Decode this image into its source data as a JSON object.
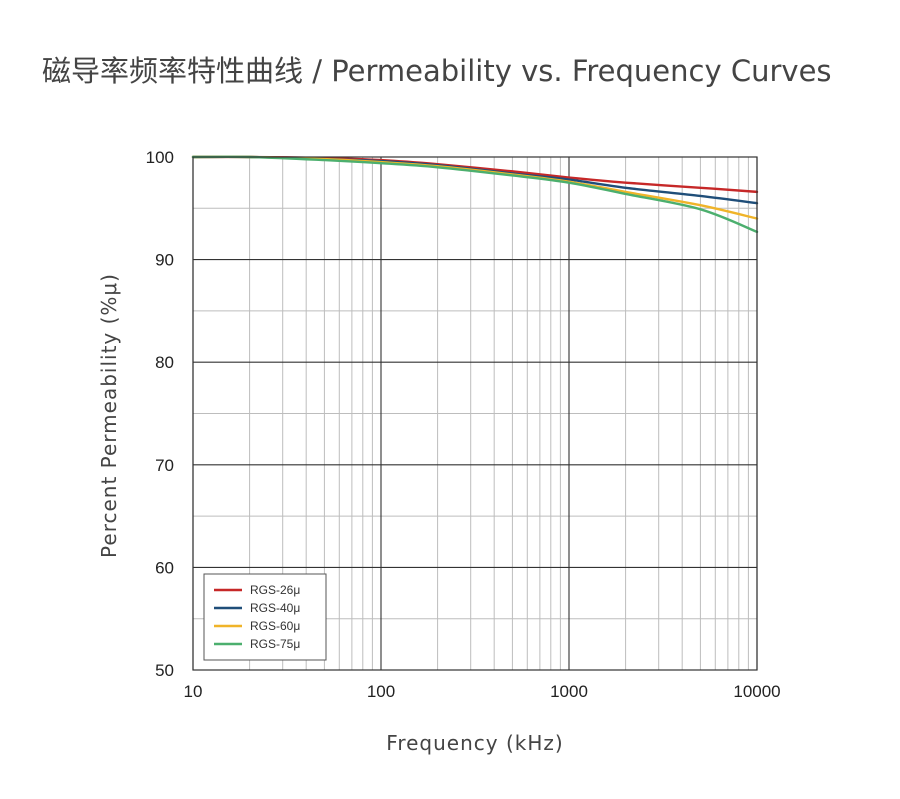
{
  "chart_data": {
    "type": "line",
    "title": "磁导率频率特性曲线 / Permeability vs. Frequency Curves",
    "xlabel": "Frequency (kHz)",
    "ylabel": "Percent Permeability (%μ)",
    "xscale": "log",
    "xlim": [
      10,
      10000
    ],
    "ylim": [
      50,
      100
    ],
    "x_ticks": [
      "10",
      "100",
      "1000",
      "10000"
    ],
    "y_ticks": [
      "50",
      "60",
      "70",
      "80",
      "90",
      "100"
    ],
    "grid": true,
    "legend_position": "bottom-left",
    "series": [
      {
        "name": "RGS-26μ",
        "color": "#c62828",
        "x": [
          10,
          20,
          50,
          100,
          200,
          500,
          1000,
          2000,
          5000,
          10000
        ],
        "y": [
          100,
          100,
          99.9,
          99.7,
          99.3,
          98.6,
          98.0,
          97.5,
          97.0,
          96.6
        ]
      },
      {
        "name": "RGS-40μ",
        "color": "#1f4e79",
        "x": [
          10,
          20,
          50,
          100,
          200,
          500,
          1000,
          2000,
          5000,
          10000
        ],
        "y": [
          100,
          100,
          99.8,
          99.6,
          99.2,
          98.4,
          97.8,
          97.0,
          96.2,
          95.5
        ]
      },
      {
        "name": "RGS-60μ",
        "color": "#f0b429",
        "x": [
          10,
          20,
          50,
          100,
          200,
          500,
          1000,
          2000,
          5000,
          10000
        ],
        "y": [
          100,
          100,
          99.8,
          99.5,
          99.1,
          98.3,
          97.6,
          96.6,
          95.3,
          94.0
        ]
      },
      {
        "name": "RGS-75μ",
        "color": "#4caf6e",
        "x": [
          10,
          20,
          50,
          100,
          200,
          500,
          1000,
          2000,
          5000,
          10000
        ],
        "y": [
          100,
          100,
          99.7,
          99.4,
          99.0,
          98.2,
          97.5,
          96.4,
          94.9,
          92.7
        ]
      }
    ]
  }
}
